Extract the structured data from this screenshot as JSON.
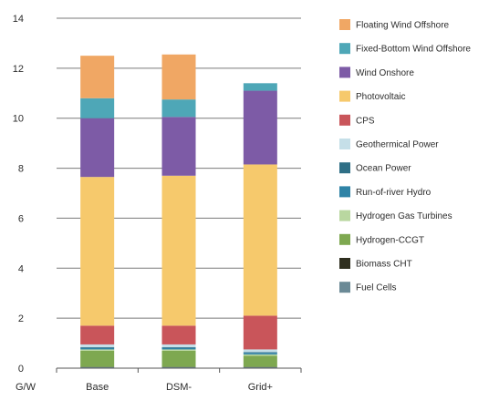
{
  "chart_data": {
    "type": "bar",
    "stacked": true,
    "categories": [
      "Base",
      "DSM-",
      "Grid+"
    ],
    "ylabel": "G/W",
    "ylim": [
      0,
      14
    ],
    "yticks": [
      0,
      2,
      4,
      6,
      8,
      10,
      12,
      14
    ],
    "grid": true,
    "legend_position": "right",
    "series": [
      {
        "name": "Fuel Cells",
        "color": "#6b8a96",
        "values": [
          0.04,
          0.04,
          0.04
        ]
      },
      {
        "name": "Biomass CHT",
        "color": "#2f2f1f",
        "values": [
          0.01,
          0.01,
          0.01
        ]
      },
      {
        "name": "Hydrogen-CCGT",
        "color": "#7ea850",
        "values": [
          0.65,
          0.65,
          0.45
        ]
      },
      {
        "name": "Hydrogen Gas Turbines",
        "color": "#b9d7a0",
        "values": [
          0.05,
          0.05,
          0.05
        ]
      },
      {
        "name": "Run-of-river Hydro",
        "color": "#2f83a6",
        "values": [
          0.06,
          0.06,
          0.06
        ]
      },
      {
        "name": "Ocean Power",
        "color": "#2f6f86",
        "values": [
          0.03,
          0.03,
          0.03
        ]
      },
      {
        "name": "Geothermical Power",
        "color": "#c5dfe8",
        "values": [
          0.11,
          0.11,
          0.11
        ]
      },
      {
        "name": "CPS",
        "color": "#c9555a",
        "values": [
          0.75,
          0.75,
          1.35
        ]
      },
      {
        "name": "Photovoltaic",
        "color": "#f6c96c",
        "values": [
          5.95,
          6.0,
          6.05
        ]
      },
      {
        "name": "Wind Onshore",
        "color": "#7d5ba6",
        "values": [
          2.35,
          2.35,
          2.95
        ]
      },
      {
        "name": "Fixed-Bottom Wind Offshore",
        "color": "#4ea7b7",
        "values": [
          0.8,
          0.7,
          0.3
        ]
      },
      {
        "name": "Floating Wind Offshore",
        "color": "#f0a764",
        "values": [
          1.7,
          1.8,
          0.0
        ]
      }
    ]
  }
}
